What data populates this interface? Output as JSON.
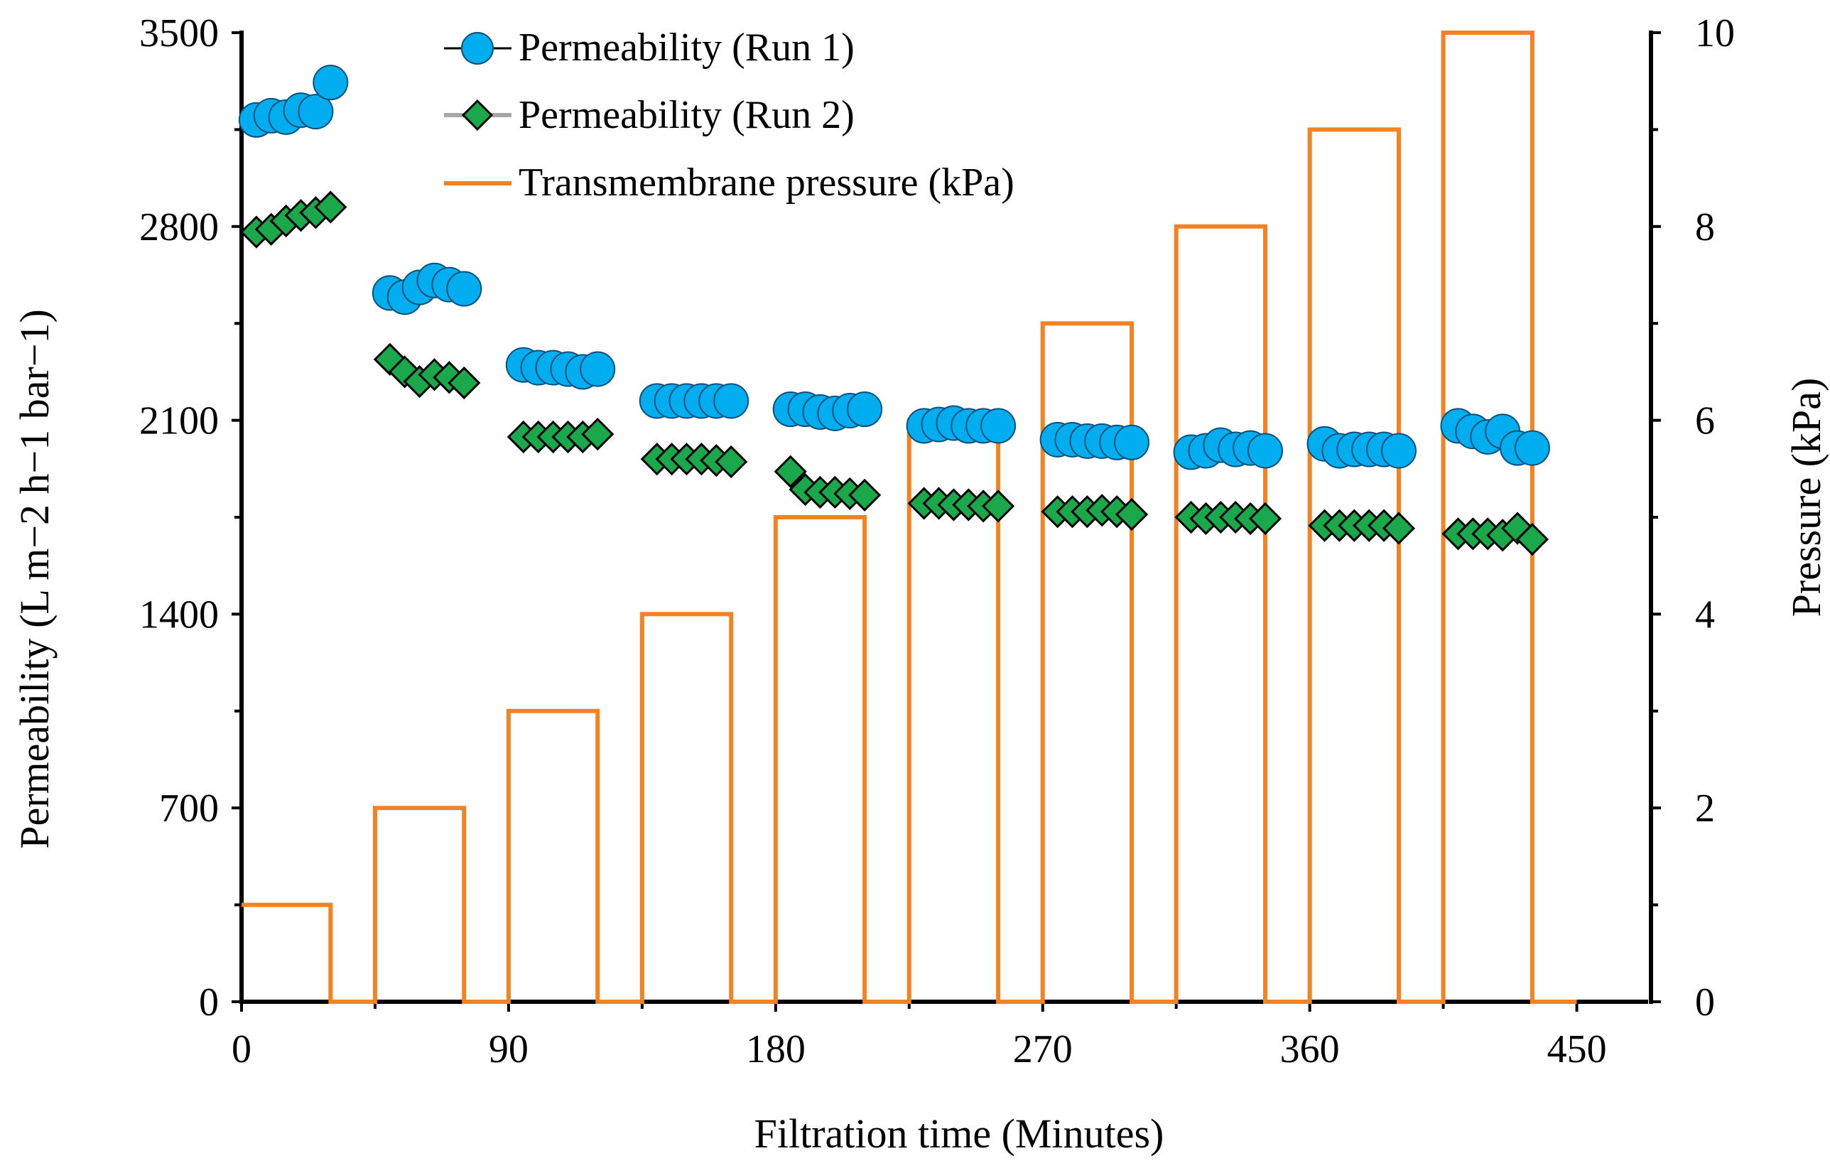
{
  "chart_data": {
    "type": "line",
    "xlabel": "Filtration time (Minutes)",
    "ylabel": "Permeability (L m−2 h−1 bar−1)",
    "y2label": "Pressure  (kPa)",
    "xlim": [
      0,
      475
    ],
    "ylim": [
      0,
      3500
    ],
    "y2lim": [
      0,
      10
    ],
    "x_ticks": [
      0,
      90,
      180,
      270,
      360,
      450
    ],
    "y_ticks": [
      0,
      700,
      1400,
      2100,
      2800,
      3500
    ],
    "y2_ticks": [
      0,
      2,
      4,
      6,
      8,
      10
    ],
    "legend_position": "top-center",
    "colors": {
      "run1_fill": "#00aeef",
      "run2_fill": "#1aa84b",
      "pressure": "#f58220",
      "run1_line": "#000000",
      "run2_line": "#a6a6a6"
    },
    "series": [
      {
        "name": "Permeability (Run 1)",
        "marker": "circle",
        "x": [
          5,
          10,
          15,
          20,
          25,
          30,
          50,
          55,
          60,
          65,
          70,
          75,
          95,
          100,
          105,
          110,
          115,
          120,
          140,
          145,
          150,
          155,
          160,
          165,
          185,
          190,
          195,
          200,
          205,
          210,
          230,
          235,
          240,
          245,
          250,
          255,
          275,
          280,
          285,
          290,
          295,
          300,
          320,
          325,
          330,
          335,
          340,
          345,
          365,
          370,
          375,
          380,
          385,
          390,
          410,
          415,
          420,
          425,
          430,
          435
        ],
        "values": [
          3185,
          3200,
          3195,
          3220,
          3215,
          3320,
          2560,
          2545,
          2580,
          2605,
          2590,
          2575,
          2300,
          2290,
          2290,
          2285,
          2275,
          2285,
          2170,
          2170,
          2170,
          2170,
          2170,
          2170,
          2140,
          2140,
          2130,
          2125,
          2135,
          2140,
          2080,
          2085,
          2090,
          2080,
          2080,
          2080,
          2030,
          2030,
          2025,
          2025,
          2020,
          2020,
          1985,
          1990,
          2010,
          1995,
          2000,
          1990,
          2015,
          1990,
          1995,
          1995,
          1995,
          1990,
          2080,
          2060,
          2040,
          2060,
          2000,
          2000
        ]
      },
      {
        "name": "Permeability (Run 2)",
        "marker": "diamond",
        "x": [
          5,
          10,
          15,
          20,
          25,
          30,
          50,
          55,
          60,
          65,
          70,
          75,
          95,
          100,
          105,
          110,
          115,
          120,
          140,
          145,
          150,
          155,
          160,
          165,
          185,
          190,
          195,
          200,
          205,
          210,
          230,
          235,
          240,
          245,
          250,
          255,
          275,
          280,
          285,
          290,
          295,
          300,
          320,
          325,
          330,
          335,
          340,
          345,
          365,
          370,
          375,
          380,
          385,
          390,
          410,
          415,
          420,
          425,
          430,
          435
        ],
        "values": [
          2780,
          2790,
          2820,
          2840,
          2850,
          2870,
          2320,
          2275,
          2240,
          2265,
          2255,
          2235,
          2040,
          2040,
          2040,
          2040,
          2040,
          2050,
          1960,
          1960,
          1960,
          1960,
          1955,
          1950,
          1915,
          1850,
          1840,
          1840,
          1835,
          1830,
          1800,
          1800,
          1795,
          1795,
          1790,
          1790,
          1770,
          1770,
          1770,
          1775,
          1770,
          1760,
          1750,
          1745,
          1750,
          1750,
          1745,
          1745,
          1720,
          1720,
          1720,
          1720,
          1720,
          1710,
          1690,
          1690,
          1690,
          1685,
          1710,
          1670
        ]
      },
      {
        "name": "Transmembrane pressure (kPa)",
        "axis": "right",
        "x": [
          0,
          30,
          30,
          45,
          45,
          75,
          75,
          90,
          90,
          120,
          120,
          135,
          135,
          165,
          165,
          180,
          180,
          210,
          210,
          225,
          225,
          255,
          255,
          270,
          270,
          300,
          300,
          315,
          315,
          345,
          345,
          360,
          360,
          390,
          390,
          405,
          405,
          435,
          435,
          450
        ],
        "values": [
          1,
          1,
          0,
          0,
          2,
          2,
          0,
          0,
          3,
          3,
          0,
          0,
          4,
          4,
          0,
          0,
          5,
          5,
          0,
          0,
          6,
          6,
          0,
          0,
          7,
          7,
          0,
          0,
          8,
          8,
          0,
          0,
          9,
          9,
          0,
          0,
          10,
          10,
          0,
          0
        ]
      }
    ]
  }
}
